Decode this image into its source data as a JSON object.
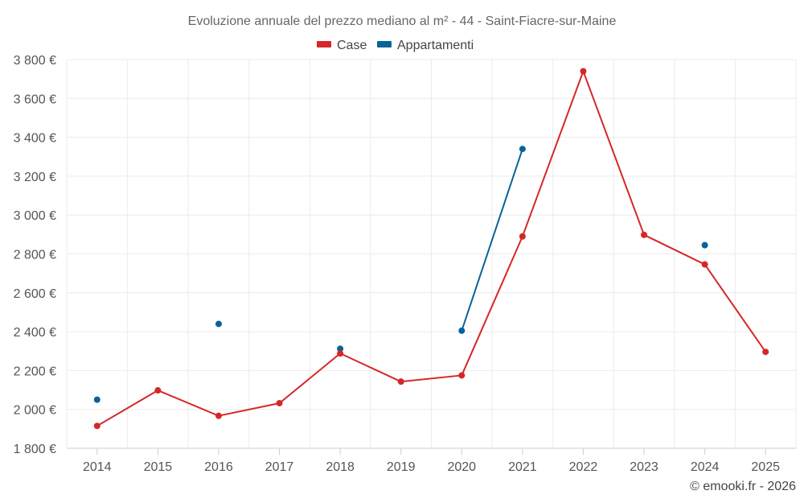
{
  "chart_data": {
    "type": "line",
    "title": "Evoluzione annuale del prezzo mediano al m² - 44 - Saint-Fiacre-sur-Maine",
    "categories": [
      "2014",
      "2015",
      "2016",
      "2017",
      "2018",
      "2019",
      "2020",
      "2021",
      "2022",
      "2023",
      "2024",
      "2025"
    ],
    "ylim": [
      1800,
      3800
    ],
    "yticks": [
      1800,
      2000,
      2200,
      2400,
      2600,
      2800,
      3000,
      3200,
      3400,
      3600,
      3800
    ],
    "ytick_labels": [
      "1 800 €",
      "2 000 €",
      "2 200 €",
      "2 400 €",
      "2 600 €",
      "2 800 €",
      "3 000 €",
      "3 200 €",
      "3 400 €",
      "3 600 €",
      "3 800 €"
    ],
    "legend_position": "top-center",
    "grid": true,
    "series": [
      {
        "name": "Case",
        "color": "#d62728",
        "values": [
          1915,
          2098,
          1967,
          2032,
          2288,
          2143,
          2175,
          2890,
          3740,
          2898,
          2746,
          2296
        ]
      },
      {
        "name": "Appartamenti",
        "color": "#0a6299",
        "values": [
          2050,
          null,
          2440,
          null,
          2312,
          null,
          2405,
          3340,
          null,
          null,
          2845,
          null
        ]
      }
    ]
  },
  "credit": "© emooki.fr - 2026"
}
